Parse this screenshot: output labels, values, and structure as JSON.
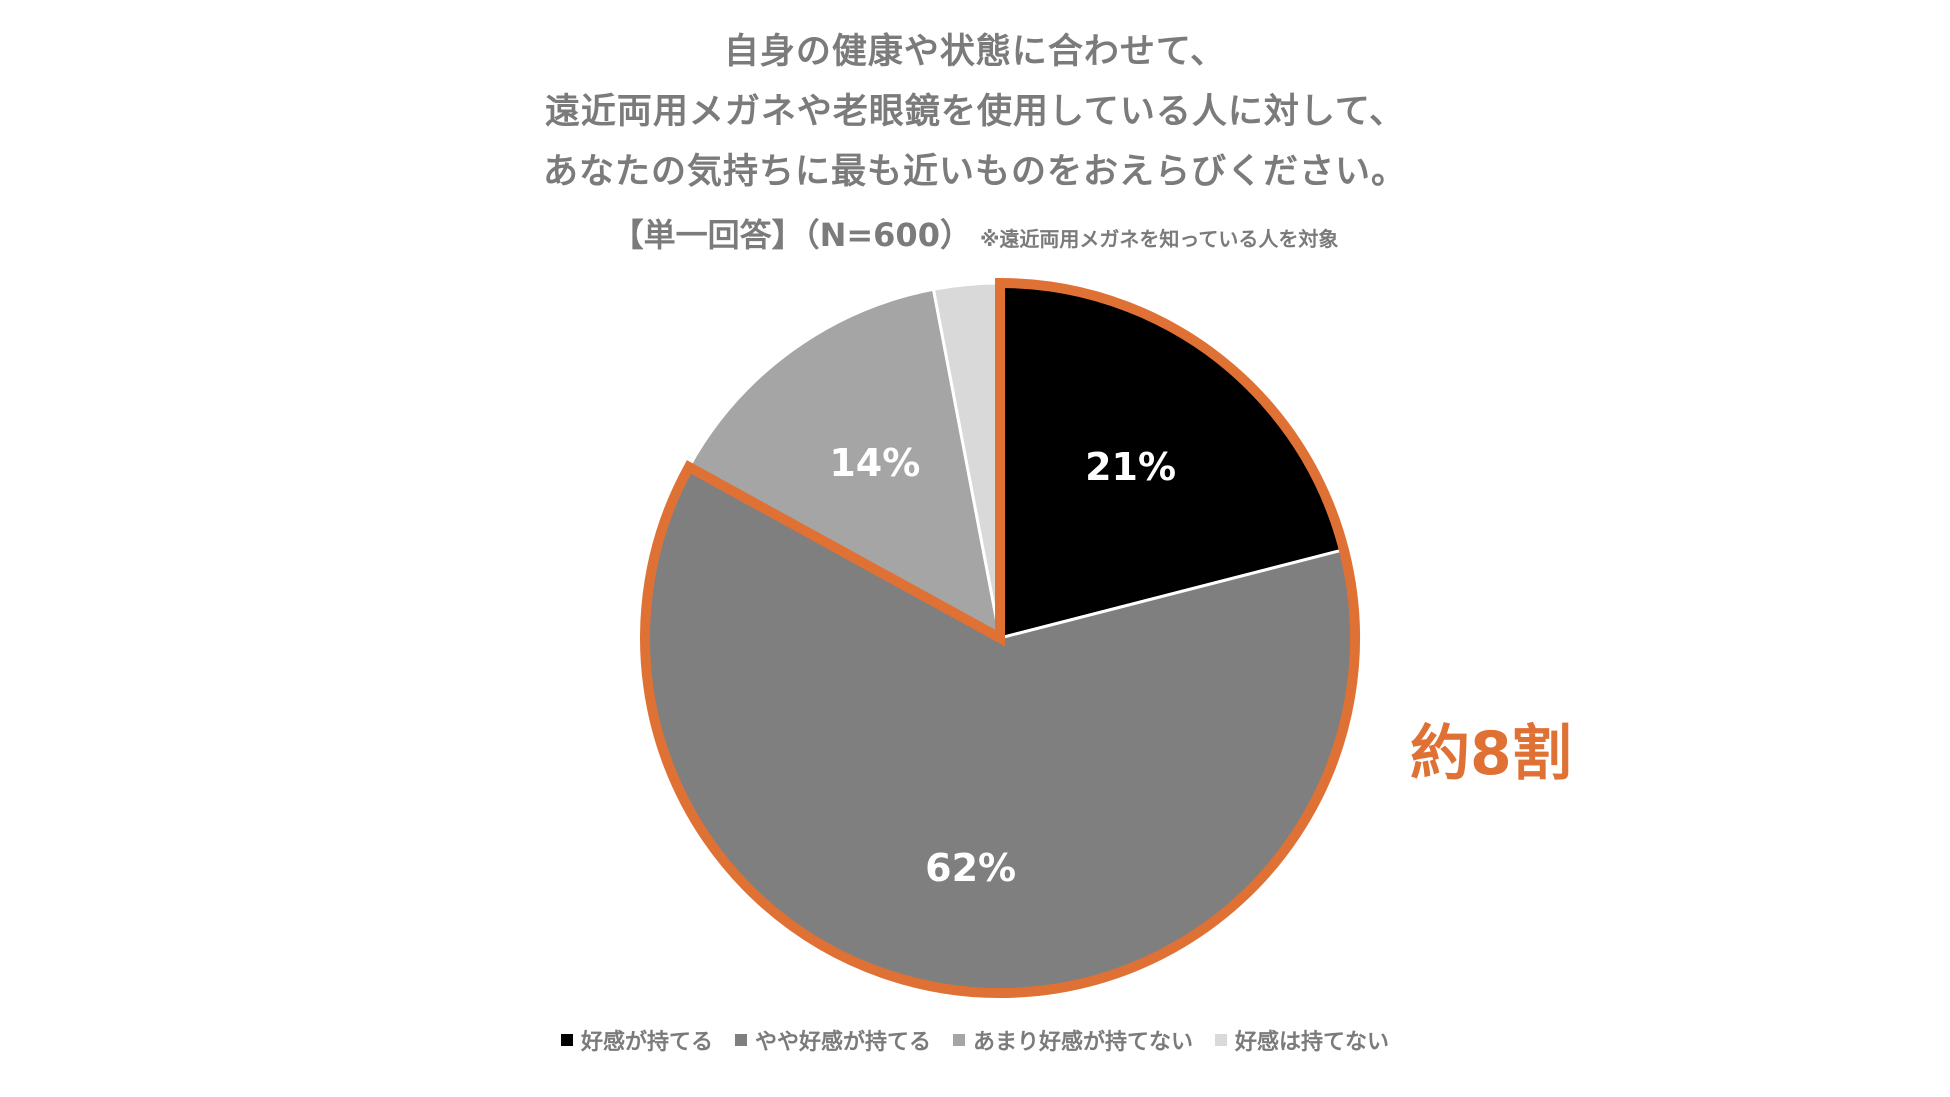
{
  "chart_data": {
    "type": "pie",
    "title": [
      "自身の健康や状態に合わせて、",
      "遠近両用メガネや老眼鏡を使用している人に対して、",
      "あなたの気持ちに最も近いものをおえらびください。"
    ],
    "subtitle": "【単一回答】（N=600）",
    "note": "※遠近両用メガネを知っている人を対象",
    "categories": [
      "好感が持てる",
      "やや好感が持てる",
      "あまり好感が持てない",
      "好感は持てない"
    ],
    "values": [
      21,
      62,
      14,
      3
    ],
    "data_labels": [
      "21%",
      "62%",
      "14%",
      ""
    ],
    "colors": [
      "#000000",
      "#7f7f7f",
      "#a5a5a5",
      "#d9d9d9"
    ],
    "legend": "bottom",
    "callout": {
      "text": "約8割",
      "covers": [
        "好感が持てる",
        "やや好感が持てる"
      ],
      "color": "#e07135"
    }
  }
}
